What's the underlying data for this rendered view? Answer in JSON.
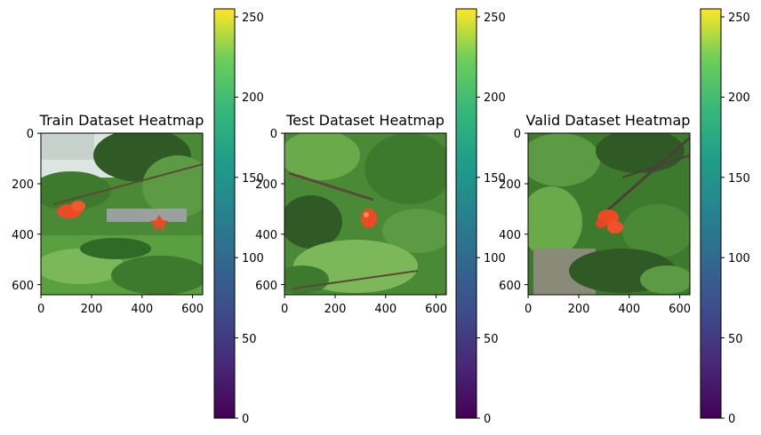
{
  "chart_data": [
    {
      "type": "heatmap",
      "title": "Train Dataset Heatmap",
      "xlabel": "",
      "ylabel": "",
      "xlim": [
        0,
        640
      ],
      "ylim": [
        640,
        0
      ],
      "xticks": [
        0,
        200,
        400,
        600
      ],
      "yticks": [
        0,
        200,
        400,
        600
      ],
      "image": "photo of green foliage with two red-orange flowers",
      "colorbar": {
        "min": 0,
        "max": 255,
        "ticks": [
          0,
          50,
          100,
          150,
          200,
          250
        ],
        "colormap": "viridis"
      },
      "grid": false
    },
    {
      "type": "heatmap",
      "title": "Test Dataset Heatmap",
      "xlabel": "",
      "ylabel": "",
      "xlim": [
        0,
        640
      ],
      "ylim": [
        640,
        0
      ],
      "xticks": [
        0,
        200,
        400,
        600
      ],
      "yticks": [
        0,
        200,
        400,
        600
      ],
      "image": "photo of leafy branches with one red flower bud",
      "colorbar": {
        "min": 0,
        "max": 255,
        "ticks": [
          0,
          50,
          100,
          150,
          200,
          250
        ],
        "colormap": "viridis"
      },
      "grid": false
    },
    {
      "type": "heatmap",
      "title": "Valid Dataset Heatmap",
      "xlabel": "",
      "ylabel": "",
      "xlim": [
        0,
        640
      ],
      "ylim": [
        640,
        0
      ],
      "xticks": [
        0,
        200,
        400,
        600
      ],
      "yticks": [
        0,
        200,
        400,
        600
      ],
      "image": "photo of dense foliage with an orange-red flower cluster",
      "colorbar": {
        "min": 0,
        "max": 255,
        "ticks": [
          0,
          50,
          100,
          150,
          200,
          250
        ],
        "colormap": "viridis"
      },
      "grid": false
    }
  ],
  "colors": {
    "foliage_dark": "#2f5a25",
    "foliage_mid": "#4a8a36",
    "foliage_light": "#7cb85a",
    "flower": "#ec4a24",
    "sky": "#dde5e0",
    "viridis_low": "#440154",
    "viridis_mid": "#21918c",
    "viridis_high": "#fde725"
  }
}
